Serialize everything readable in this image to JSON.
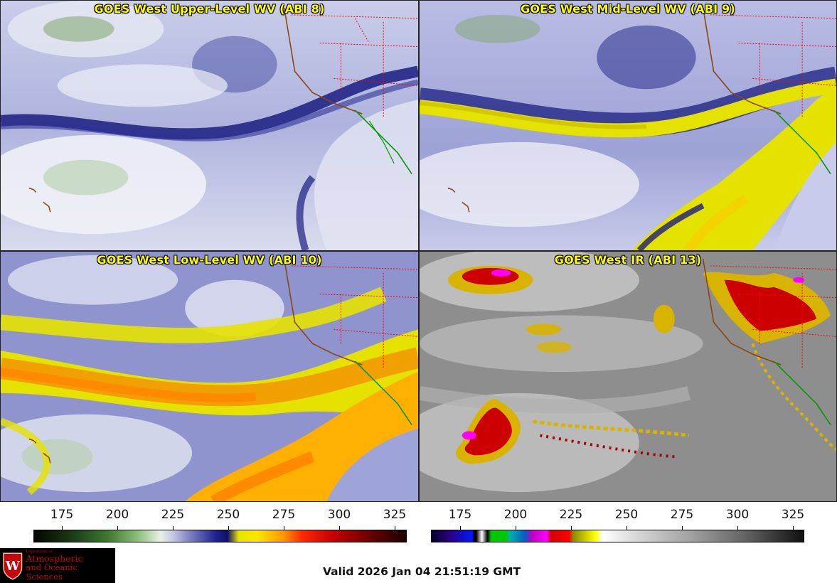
{
  "panels": [
    {
      "title": "GOES West Upper-Level WV (ABI 8)"
    },
    {
      "title": "GOES West Mid-Level WV (ABI 9)"
    },
    {
      "title": "GOES West Low-Level WV (ABI 10)"
    },
    {
      "title": "GOES West IR (ABI 13)"
    }
  ],
  "colorbars": {
    "wv": {
      "ticks": [
        "175",
        "200",
        "225",
        "250",
        "275",
        "300",
        "325"
      ]
    },
    "ir": {
      "ticks": [
        "175",
        "200",
        "225",
        "250",
        "275",
        "300",
        "325"
      ]
    }
  },
  "logo": {
    "dept_line": "Department of",
    "name_line1": "Atmospheric",
    "name_line2": "and Oceanic Sciences",
    "crest_letter": "W"
  },
  "footer": {
    "valid_time": "Valid 2026 Jan 04 21:51:19 GMT"
  },
  "colors": {
    "title_text": "#ffff00",
    "coastline": "#8b4513",
    "state_borders": "#ff0000",
    "mexico_coast": "#009900",
    "logo_red": "#c5050c"
  }
}
